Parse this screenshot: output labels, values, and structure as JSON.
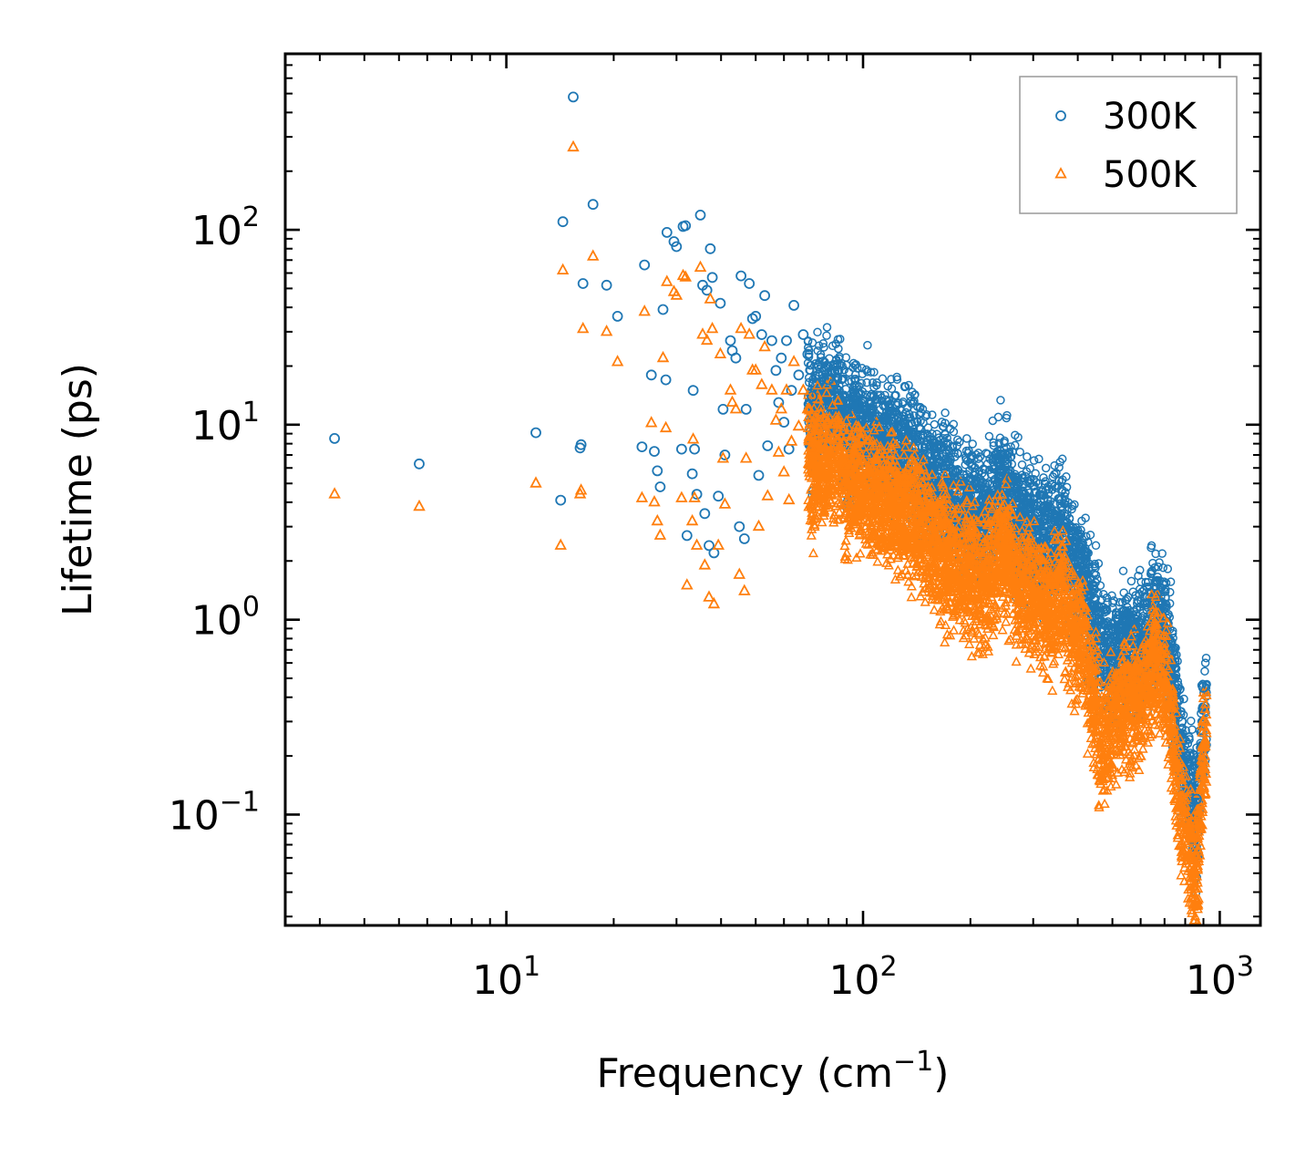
{
  "chart_data": {
    "type": "scatter",
    "title": "",
    "xlabel": "Frequency (cm",
    "xlabel_sup": "−1",
    "xlabel_suffix": ")",
    "ylabel": "Lifetime (ps)",
    "xscale": "log",
    "yscale": "log",
    "xlim": [
      2.4,
      1300
    ],
    "ylim": [
      0.027,
      800
    ],
    "x_ticks": [
      {
        "value": 10,
        "base": "10",
        "exp": "1"
      },
      {
        "value": 100,
        "base": "10",
        "exp": "2"
      },
      {
        "value": 1000,
        "base": "10",
        "exp": "3"
      }
    ],
    "y_ticks": [
      {
        "value": 0.1,
        "base": "10",
        "exp": "−1"
      },
      {
        "value": 1,
        "base": "10",
        "exp": "0"
      },
      {
        "value": 10,
        "base": "10",
        "exp": "1"
      },
      {
        "value": 100,
        "base": "10",
        "exp": "2"
      }
    ],
    "legend_position": "top-right",
    "series": [
      {
        "name": "300K",
        "color": "#1f77b4",
        "marker": "circle-open",
        "points": [
          [
            3.3,
            8.5
          ],
          [
            5.7,
            6.3
          ],
          [
            12.1,
            9.1
          ],
          [
            14.2,
            4.1
          ],
          [
            14.4,
            110
          ],
          [
            15.4,
            480
          ],
          [
            16.1,
            7.6
          ],
          [
            16.2,
            7.9
          ],
          [
            16.4,
            53
          ],
          [
            17.5,
            135
          ],
          [
            19.1,
            52
          ],
          [
            20.5,
            36
          ],
          [
            24.0,
            7.7
          ],
          [
            24.4,
            66
          ],
          [
            25.5,
            18
          ],
          [
            26.0,
            7.3
          ],
          [
            26.5,
            5.8
          ],
          [
            27.0,
            4.8
          ],
          [
            27.5,
            39
          ],
          [
            28.0,
            17
          ],
          [
            28.2,
            97
          ],
          [
            29.5,
            87
          ],
          [
            30.0,
            82
          ],
          [
            31.0,
            7.5
          ],
          [
            31.3,
            104
          ],
          [
            31.8,
            105
          ],
          [
            32.1,
            2.7
          ],
          [
            33.2,
            5.6
          ],
          [
            33.4,
            15
          ],
          [
            33.7,
            7.5
          ],
          [
            34.2,
            4.4
          ],
          [
            35.0,
            119
          ],
          [
            35.5,
            52
          ],
          [
            36.0,
            3.5
          ],
          [
            36.5,
            49
          ],
          [
            37.0,
            2.4
          ],
          [
            37.3,
            80
          ],
          [
            37.8,
            57
          ],
          [
            38.2,
            2.2
          ],
          [
            39.3,
            4.3
          ],
          [
            39.8,
            42
          ],
          [
            40.5,
            12
          ],
          [
            41.0,
            7.0
          ],
          [
            42.5,
            27
          ],
          [
            43.0,
            24
          ],
          [
            44.0,
            22
          ],
          [
            45.0,
            3.0
          ],
          [
            45.5,
            58
          ],
          [
            46.5,
            2.6
          ],
          [
            47.0,
            12
          ],
          [
            48.0,
            53
          ],
          [
            49.0,
            35
          ],
          [
            50.0,
            36
          ],
          [
            51.0,
            5.5
          ],
          [
            52.0,
            29
          ],
          [
            53.0,
            46
          ],
          [
            54.0,
            7.8
          ],
          [
            55.5,
            27
          ],
          [
            57.0,
            19
          ],
          [
            58.0,
            13
          ],
          [
            59.0,
            22
          ],
          [
            60.0,
            10.3
          ],
          [
            61.0,
            27
          ],
          [
            62.0,
            7.5
          ],
          [
            63.0,
            15
          ],
          [
            64.0,
            41
          ],
          [
            66.0,
            18
          ],
          [
            68.0,
            29
          ],
          [
            70.0,
            23
          ],
          [
            72.0,
            14
          ],
          [
            75.0,
            18
          ],
          [
            80.0,
            17
          ],
          [
            85.0,
            19
          ],
          [
            90.0,
            12
          ],
          [
            95.0,
            14
          ],
          [
            100.0,
            13
          ],
          [
            110.0,
            11
          ],
          [
            120.0,
            11.5
          ],
          [
            130.0,
            10.2
          ],
          [
            140.0,
            8.8
          ],
          [
            150.0,
            7.8
          ],
          [
            160.0,
            6.9
          ],
          [
            170.0,
            6.2
          ],
          [
            180.0,
            5.8
          ],
          [
            190.0,
            5.5
          ],
          [
            200.0,
            5.2
          ],
          [
            210.0,
            4.9
          ],
          [
            220.0,
            4.6
          ],
          [
            230.0,
            5.6
          ],
          [
            240.0,
            6.4
          ],
          [
            250.0,
            6.6
          ],
          [
            260.0,
            5.3
          ],
          [
            270.0,
            4.7
          ],
          [
            280.0,
            4.4
          ],
          [
            290.0,
            4.1
          ],
          [
            300.0,
            3.9
          ],
          [
            320.0,
            3.7
          ],
          [
            340.0,
            3.5
          ],
          [
            360.0,
            4.1
          ],
          [
            380.0,
            3.0
          ],
          [
            400.0,
            2.7
          ],
          [
            420.0,
            2.2
          ],
          [
            440.0,
            1.5
          ],
          [
            460.0,
            1.1
          ],
          [
            480.0,
            0.95
          ],
          [
            500.0,
            0.9
          ],
          [
            520.0,
            1.0
          ],
          [
            540.0,
            1.1
          ],
          [
            560.0,
            0.98
          ],
          [
            580.0,
            0.93
          ],
          [
            620.0,
            1.2
          ],
          [
            660.0,
            1.5
          ],
          [
            700.0,
            1.3
          ],
          [
            740.0,
            0.7
          ],
          [
            780.0,
            0.3
          ],
          [
            820.0,
            0.2
          ],
          [
            860.0,
            0.12
          ],
          [
            900.0,
            0.45
          ]
        ]
      },
      {
        "name": "500K",
        "color": "#ff7f0e",
        "marker": "triangle-open",
        "points": [
          [
            3.3,
            4.4
          ],
          [
            5.7,
            3.8
          ],
          [
            12.1,
            5.0
          ],
          [
            14.2,
            2.4
          ],
          [
            14.4,
            62
          ],
          [
            15.4,
            265
          ],
          [
            16.1,
            4.4
          ],
          [
            16.2,
            4.6
          ],
          [
            16.4,
            31
          ],
          [
            17.5,
            73
          ],
          [
            19.1,
            30
          ],
          [
            20.5,
            21
          ],
          [
            24.0,
            4.2
          ],
          [
            24.4,
            38
          ],
          [
            25.5,
            10.2
          ],
          [
            26.0,
            4.0
          ],
          [
            26.5,
            3.2
          ],
          [
            27.0,
            2.7
          ],
          [
            27.5,
            22
          ],
          [
            28.0,
            9.6
          ],
          [
            28.2,
            54
          ],
          [
            29.5,
            48
          ],
          [
            30.0,
            46
          ],
          [
            31.0,
            4.2
          ],
          [
            31.3,
            58
          ],
          [
            31.8,
            57
          ],
          [
            32.1,
            1.5
          ],
          [
            33.2,
            3.2
          ],
          [
            33.4,
            8.4
          ],
          [
            33.7,
            4.2
          ],
          [
            34.2,
            2.4
          ],
          [
            35.0,
            64
          ],
          [
            35.5,
            29
          ],
          [
            36.0,
            1.9
          ],
          [
            36.5,
            27
          ],
          [
            37.0,
            1.3
          ],
          [
            37.3,
            44
          ],
          [
            37.8,
            31
          ],
          [
            38.2,
            1.2
          ],
          [
            39.3,
            2.4
          ],
          [
            39.8,
            23
          ],
          [
            40.5,
            6.7
          ],
          [
            41.0,
            3.9
          ],
          [
            42.5,
            15
          ],
          [
            43.0,
            13
          ],
          [
            44.0,
            12
          ],
          [
            45.0,
            1.7
          ],
          [
            45.5,
            31
          ],
          [
            46.5,
            1.4
          ],
          [
            47.0,
            6.7
          ],
          [
            48.0,
            29
          ],
          [
            49.0,
            19
          ],
          [
            50.0,
            19
          ],
          [
            51.0,
            3.0
          ],
          [
            52.0,
            16
          ],
          [
            53.0,
            25
          ],
          [
            54.0,
            4.3
          ],
          [
            55.5,
            15
          ],
          [
            57.0,
            10.5
          ],
          [
            58.0,
            7.2
          ],
          [
            59.0,
            12
          ],
          [
            60.0,
            5.7
          ],
          [
            61.0,
            15
          ],
          [
            62.0,
            4.1
          ],
          [
            63.0,
            8.2
          ],
          [
            64.0,
            21
          ],
          [
            66.0,
            9.8
          ],
          [
            68.0,
            15
          ],
          [
            70.0,
            12
          ],
          [
            72.0,
            7.5
          ],
          [
            75.0,
            9.5
          ],
          [
            80.0,
            8.5
          ],
          [
            85.0,
            9.2
          ],
          [
            90.0,
            6.2
          ],
          [
            95.0,
            7.2
          ],
          [
            100.0,
            6.5
          ],
          [
            110.0,
            5.5
          ],
          [
            120.0,
            5.6
          ],
          [
            130.0,
            5.0
          ],
          [
            140.0,
            4.3
          ],
          [
            150.0,
            3.8
          ],
          [
            160.0,
            3.4
          ],
          [
            170.0,
            3.0
          ],
          [
            180.0,
            2.8
          ],
          [
            190.0,
            2.6
          ],
          [
            200.0,
            2.5
          ],
          [
            210.0,
            2.3
          ],
          [
            220.0,
            2.2
          ],
          [
            230.0,
            2.6
          ],
          [
            240.0,
            3.0
          ],
          [
            250.0,
            3.1
          ],
          [
            260.0,
            2.5
          ],
          [
            270.0,
            2.2
          ],
          [
            280.0,
            2.0
          ],
          [
            290.0,
            1.9
          ],
          [
            300.0,
            1.8
          ],
          [
            320.0,
            1.7
          ],
          [
            340.0,
            1.6
          ],
          [
            360.0,
            1.9
          ],
          [
            380.0,
            1.4
          ],
          [
            400.0,
            1.2
          ],
          [
            420.0,
            0.95
          ],
          [
            440.0,
            0.6
          ],
          [
            460.0,
            0.35
          ],
          [
            480.0,
            0.3
          ],
          [
            500.0,
            0.45
          ],
          [
            520.0,
            0.5
          ],
          [
            540.0,
            0.55
          ],
          [
            560.0,
            0.5
          ],
          [
            580.0,
            0.5
          ],
          [
            620.0,
            0.6
          ],
          [
            660.0,
            0.9
          ],
          [
            700.0,
            0.7
          ],
          [
            740.0,
            0.35
          ],
          [
            780.0,
            0.15
          ],
          [
            820.0,
            0.09
          ],
          [
            860.0,
            0.06
          ],
          [
            900.0,
            0.3
          ]
        ]
      }
    ]
  }
}
